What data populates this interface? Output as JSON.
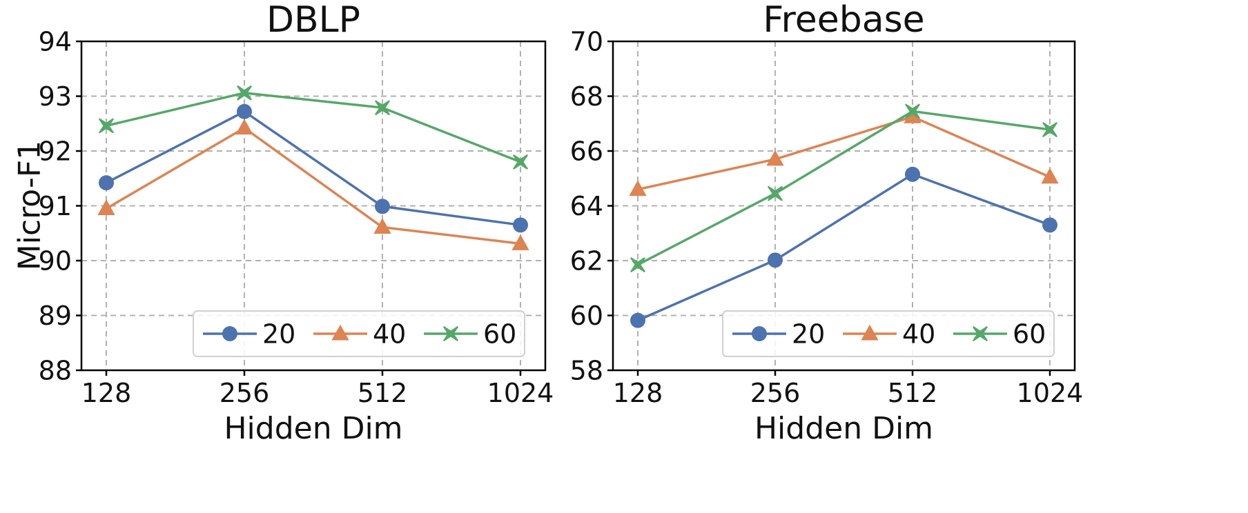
{
  "ylabel_shared": "Micro-F1",
  "series_styles": {
    "20": {
      "color": "#4c72b0",
      "marker": "circle"
    },
    "40": {
      "color": "#dd8452",
      "marker": "triangle"
    },
    "60": {
      "color": "#55a868",
      "marker": "x-filled"
    }
  },
  "chart_data": [
    {
      "type": "line",
      "title": "DBLP",
      "xlabel": "Hidden Dim",
      "ylabel": "Micro-F1",
      "categories": [
        "128",
        "256",
        "512",
        "1024"
      ],
      "ylim": [
        88,
        94
      ],
      "yticks": [
        88,
        89,
        90,
        91,
        92,
        93,
        94
      ],
      "grid": true,
      "legend": {
        "placement": "lower-right",
        "columns": 3
      },
      "series": [
        {
          "name": "20",
          "values": [
            91.42,
            92.72,
            90.99,
            90.65
          ]
        },
        {
          "name": "40",
          "values": [
            90.95,
            92.42,
            90.61,
            90.31
          ]
        },
        {
          "name": "60",
          "values": [
            92.46,
            93.06,
            92.79,
            91.8
          ]
        }
      ]
    },
    {
      "type": "line",
      "title": "Freebase",
      "xlabel": "Hidden Dim",
      "ylabel": "",
      "categories": [
        "128",
        "256",
        "512",
        "1024"
      ],
      "ylim": [
        58,
        70
      ],
      "yticks": [
        58,
        60,
        62,
        64,
        66,
        68,
        70
      ],
      "grid": true,
      "legend": {
        "placement": "lower-right",
        "columns": 3
      },
      "series": [
        {
          "name": "20",
          "values": [
            59.82,
            62.02,
            65.15,
            63.3
          ]
        },
        {
          "name": "40",
          "values": [
            64.6,
            65.7,
            67.25,
            65.05
          ]
        },
        {
          "name": "60",
          "values": [
            61.85,
            64.45,
            67.45,
            66.78
          ]
        }
      ]
    }
  ]
}
